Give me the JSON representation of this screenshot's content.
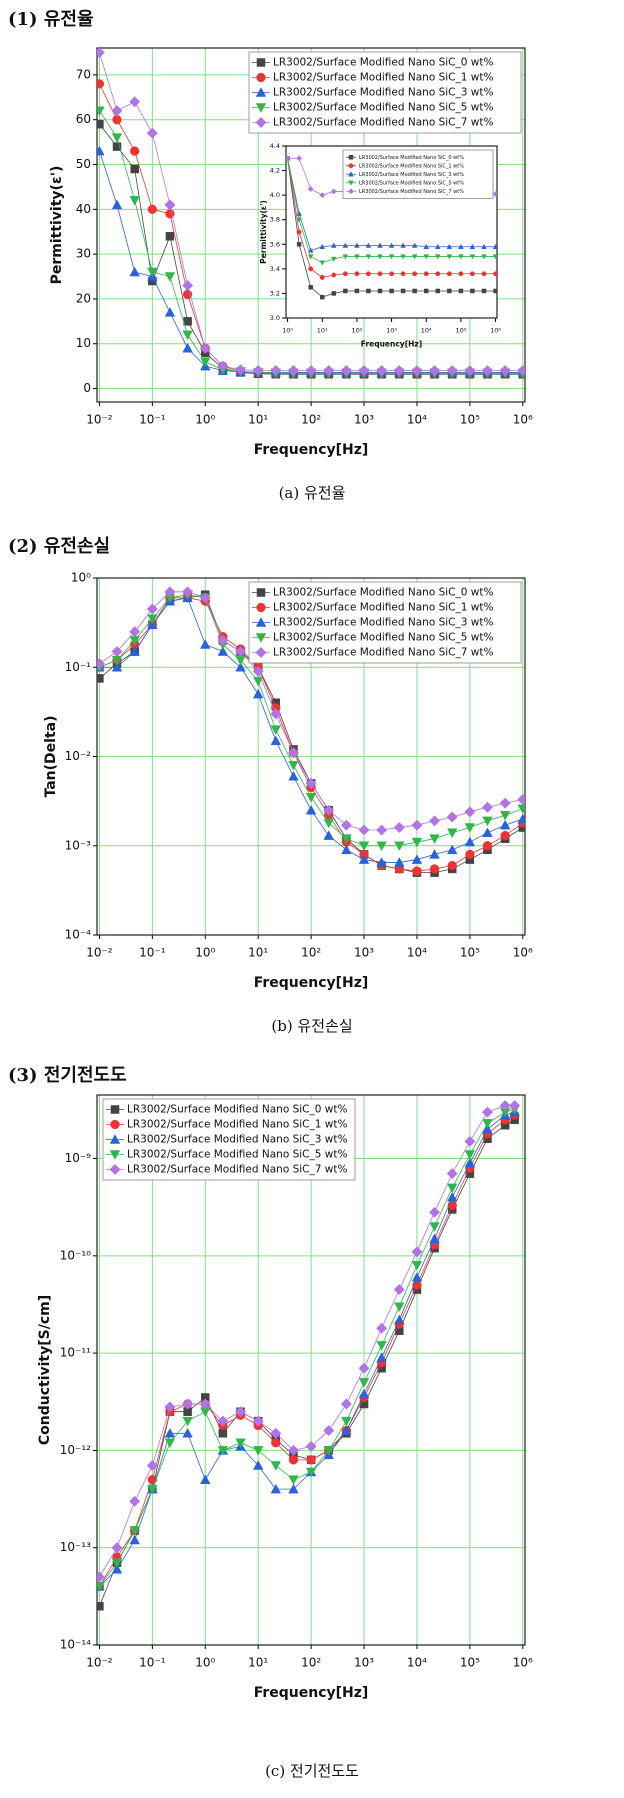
{
  "sections": [
    {
      "heading": "(1) 유전율",
      "caption": "(a) 유전율"
    },
    {
      "heading": "(2) 유전손실",
      "caption": "(b) 유전손실"
    },
    {
      "heading": "(3) 전기전도도",
      "caption": "(c) 전기전도도"
    }
  ],
  "chart_data": [
    {
      "type": "line",
      "xlabel": "Frequency[Hz]",
      "ylabel": "Permittivity(ε')",
      "xlog": true,
      "ylog": false,
      "grid": true,
      "legend": "upper right",
      "xlim": [
        0.009,
        1100000
      ],
      "ylim": [
        -3,
        76
      ],
      "xticks": [
        {
          "value": 0.01,
          "label": "10⁻²"
        },
        {
          "value": 0.1,
          "label": "10⁻¹"
        },
        {
          "value": 1,
          "label": "10⁰"
        },
        {
          "value": 10,
          "label": "10¹"
        },
        {
          "value": 100,
          "label": "10²"
        },
        {
          "value": 1000,
          "label": "10³"
        },
        {
          "value": 10000,
          "label": "10⁴"
        },
        {
          "value": 100000,
          "label": "10⁵"
        },
        {
          "value": 1000000,
          "label": "10⁶"
        }
      ],
      "yticks": [
        0,
        10,
        20,
        30,
        40,
        50,
        60,
        70
      ],
      "x": [
        0.01,
        0.0215,
        0.0464,
        0.1,
        0.215,
        0.464,
        1,
        2.15,
        4.64,
        10,
        21.5,
        46.4,
        100,
        215,
        464,
        1000,
        2150,
        4640,
        10000,
        21500,
        46400,
        100000,
        215000,
        464000,
        1000000
      ],
      "series": [
        {
          "name": "LR3002/Surface Modified Nano SiC_0 wt%",
          "color": "#444444",
          "marker": "square",
          "values": [
            59,
            54,
            49,
            24,
            34,
            15,
            8,
            4.5,
            3.6,
            3.3,
            3.2,
            3.2,
            3.2,
            3.2,
            3.2,
            3.2,
            3.2,
            3.2,
            3.2,
            3.2,
            3.2,
            3.2,
            3.2,
            3.2,
            3.2
          ]
        },
        {
          "name": "LR3002/Surface Modified Nano SiC_1 wt%",
          "color": "#ee3333",
          "marker": "circle",
          "values": [
            68,
            60,
            53,
            40,
            39,
            21,
            9,
            5,
            3.8,
            3.5,
            3.4,
            3.4,
            3.4,
            3.4,
            3.4,
            3.4,
            3.4,
            3.4,
            3.4,
            3.4,
            3.4,
            3.4,
            3.4,
            3.4,
            3.4
          ]
        },
        {
          "name": "LR3002/Surface Modified Nano SiC_3 wt%",
          "color": "#2a62d8",
          "marker": "triangle-up",
          "values": [
            53,
            41,
            26,
            25,
            17,
            9,
            5,
            4,
            3.7,
            3.6,
            3.6,
            3.6,
            3.6,
            3.6,
            3.6,
            3.6,
            3.6,
            3.6,
            3.6,
            3.6,
            3.6,
            3.6,
            3.6,
            3.6,
            3.6
          ]
        },
        {
          "name": "LR3002/Surface Modified Nano SiC_5 wt%",
          "color": "#2fb84a",
          "marker": "triangle-down",
          "values": [
            62,
            56,
            42,
            26,
            25,
            12,
            6,
            4.2,
            3.8,
            3.6,
            3.55,
            3.5,
            3.5,
            3.5,
            3.5,
            3.5,
            3.5,
            3.5,
            3.5,
            3.5,
            3.5,
            3.5,
            3.5,
            3.5,
            3.5
          ]
        },
        {
          "name": "LR3002/Surface Modified Nano SiC_7 wt%",
          "color": "#b273e6",
          "marker": "diamond",
          "values": [
            75,
            62,
            64,
            57,
            41,
            23,
            9,
            5,
            4.2,
            4.05,
            4.03,
            4.03,
            4.03,
            4.03,
            4.03,
            4.03,
            4.03,
            4.02,
            4.02,
            4.02,
            4.02,
            4.01,
            4.01,
            4.01,
            4.01
          ]
        }
      ]
    },
    {
      "type": "line",
      "xlabel": "Frequency[Hz]",
      "ylabel": "Permittivity(ε')",
      "xlog": true,
      "ylog": false,
      "grid": false,
      "legend": "upper right",
      "xlim": [
        0.9,
        1100000
      ],
      "ylim": [
        3.0,
        4.4
      ],
      "xticks": [
        {
          "value": 1,
          "label": "10⁰"
        },
        {
          "value": 10,
          "label": "10¹"
        },
        {
          "value": 100,
          "label": "10²"
        },
        {
          "value": 1000,
          "label": "10³"
        },
        {
          "value": 10000,
          "label": "10⁴"
        },
        {
          "value": 100000,
          "label": "10⁵"
        },
        {
          "value": 1000000,
          "label": "10⁶"
        }
      ],
      "yticks": [
        {
          "value": 3,
          "label": "3.0"
        },
        3.2,
        3.4,
        3.6,
        3.8,
        {
          "value": 4,
          "label": "4.0"
        },
        4.2,
        4.4
      ],
      "x": [
        1,
        2.15,
        4.64,
        10,
        21.5,
        46.4,
        100,
        215,
        464,
        1000,
        2150,
        4640,
        10000,
        21500,
        46400,
        100000,
        215000,
        464000,
        1000000
      ],
      "series": [
        {
          "name": "LR3002/Surface Modified Nano SiC_0 wt%",
          "color": "#444444",
          "marker": "square",
          "values": [
            4.3,
            3.6,
            3.25,
            3.17,
            3.2,
            3.22,
            3.22,
            3.22,
            3.22,
            3.22,
            3.22,
            3.22,
            3.22,
            3.22,
            3.22,
            3.22,
            3.22,
            3.22,
            3.22
          ]
        },
        {
          "name": "LR3002/Surface Modified Nano SiC_1 wt%",
          "color": "#ee3333",
          "marker": "circle",
          "values": [
            4.3,
            3.7,
            3.4,
            3.33,
            3.35,
            3.36,
            3.36,
            3.36,
            3.36,
            3.36,
            3.36,
            3.36,
            3.36,
            3.36,
            3.36,
            3.36,
            3.36,
            3.36,
            3.36
          ]
        },
        {
          "name": "LR3002/Surface Modified Nano SiC_3 wt%",
          "color": "#2a62d8",
          "marker": "triangle-up",
          "values": [
            4.3,
            3.85,
            3.55,
            3.58,
            3.59,
            3.59,
            3.59,
            3.59,
            3.59,
            3.59,
            3.59,
            3.59,
            3.58,
            3.58,
            3.58,
            3.58,
            3.58,
            3.58,
            3.58
          ]
        },
        {
          "name": "LR3002/Surface Modified Nano SiC_5 wt%",
          "color": "#2fb84a",
          "marker": "triangle-down",
          "values": [
            4.3,
            3.8,
            3.5,
            3.45,
            3.48,
            3.5,
            3.5,
            3.5,
            3.5,
            3.5,
            3.5,
            3.5,
            3.5,
            3.5,
            3.5,
            3.5,
            3.5,
            3.5,
            3.5
          ]
        },
        {
          "name": "LR3002/Surface Modified Nano SiC_7 wt%",
          "color": "#b273e6",
          "marker": "diamond",
          "values": [
            4.3,
            4.3,
            4.05,
            4.0,
            4.03,
            4.03,
            4.03,
            4.03,
            4.03,
            4.03,
            4.03,
            4.02,
            4.02,
            4.02,
            4.02,
            4.01,
            4.01,
            4.01,
            4.01
          ]
        }
      ]
    },
    {
      "type": "line",
      "xlabel": "Frequency[Hz]",
      "ylabel": "Tan(Delta)",
      "xlog": true,
      "ylog": true,
      "grid": true,
      "legend": "upper right",
      "xlim": [
        0.009,
        1100000
      ],
      "ylim": [
        0.0001,
        1
      ],
      "xticks": [
        {
          "value": 0.01,
          "label": "10⁻²"
        },
        {
          "value": 0.1,
          "label": "10⁻¹"
        },
        {
          "value": 1,
          "label": "10⁰"
        },
        {
          "value": 10,
          "label": "10¹"
        },
        {
          "value": 100,
          "label": "10²"
        },
        {
          "value": 1000,
          "label": "10³"
        },
        {
          "value": 10000,
          "label": "10⁴"
        },
        {
          "value": 100000,
          "label": "10⁵"
        },
        {
          "value": 1000000,
          "label": "10⁶"
        }
      ],
      "yticks": [
        {
          "value": 0.0001,
          "label": "10⁻⁴"
        },
        {
          "value": 0.001,
          "label": "10⁻³"
        },
        {
          "value": 0.01,
          "label": "10⁻²"
        },
        {
          "value": 0.1,
          "label": "10⁻¹"
        },
        {
          "value": 1,
          "label": "10⁰"
        }
      ],
      "x": [
        0.01,
        0.0215,
        0.0464,
        0.1,
        0.215,
        0.464,
        1,
        2.15,
        4.64,
        10,
        21.5,
        46.4,
        100,
        215,
        464,
        1000,
        2150,
        4640,
        10000,
        21500,
        46400,
        100000,
        215000,
        464000,
        1000000
      ],
      "series": [
        {
          "name": "LR3002/Surface Modified Nano SiC_0 wt%",
          "color": "#444444",
          "marker": "square",
          "values": [
            0.075,
            0.11,
            0.15,
            0.3,
            0.55,
            0.6,
            0.65,
            0.2,
            0.15,
            0.1,
            0.04,
            0.012,
            0.005,
            0.0025,
            0.0012,
            0.0008,
            0.0006,
            0.00055,
            0.0005,
            0.0005,
            0.00055,
            0.0007,
            0.0009,
            0.0012,
            0.0016
          ]
        },
        {
          "name": "LR3002/Surface Modified Nano SiC_1 wt%",
          "color": "#ee3333",
          "marker": "circle",
          "values": [
            0.1,
            0.12,
            0.18,
            0.3,
            0.6,
            0.6,
            0.55,
            0.22,
            0.16,
            0.1,
            0.035,
            0.011,
            0.0045,
            0.0022,
            0.0011,
            0.0008,
            0.0006,
            0.00055,
            0.00052,
            0.00055,
            0.0006,
            0.0008,
            0.001,
            0.0013,
            0.0018
          ]
        },
        {
          "name": "LR3002/Surface Modified Nano SiC_3 wt%",
          "color": "#2a62d8",
          "marker": "triangle-up",
          "values": [
            0.1,
            0.1,
            0.15,
            0.3,
            0.55,
            0.6,
            0.18,
            0.15,
            0.1,
            0.05,
            0.015,
            0.006,
            0.0025,
            0.0013,
            0.0009,
            0.0007,
            0.00065,
            0.00065,
            0.0007,
            0.0008,
            0.0009,
            0.0011,
            0.0014,
            0.0017,
            0.002
          ]
        },
        {
          "name": "LR3002/Surface Modified Nano SiC_5 wt%",
          "color": "#2fb84a",
          "marker": "triangle-down",
          "values": [
            0.1,
            0.12,
            0.2,
            0.35,
            0.6,
            0.65,
            0.6,
            0.18,
            0.12,
            0.07,
            0.02,
            0.008,
            0.0035,
            0.0018,
            0.0012,
            0.001,
            0.001,
            0.001,
            0.0011,
            0.0012,
            0.0014,
            0.0016,
            0.0019,
            0.0022,
            0.0026
          ]
        },
        {
          "name": "LR3002/Surface Modified Nano SiC_7 wt%",
          "color": "#b273e6",
          "marker": "diamond",
          "values": [
            0.11,
            0.15,
            0.25,
            0.45,
            0.7,
            0.7,
            0.6,
            0.2,
            0.15,
            0.09,
            0.03,
            0.011,
            0.005,
            0.0025,
            0.0017,
            0.0015,
            0.0015,
            0.0016,
            0.0017,
            0.0019,
            0.0021,
            0.0024,
            0.0027,
            0.003,
            0.0033
          ]
        }
      ]
    },
    {
      "type": "line",
      "xlabel": "Frequency[Hz]",
      "ylabel": "Conductivity[S/cm]",
      "xlog": true,
      "ylog": true,
      "grid": true,
      "legend": "upper left",
      "xlim": [
        0.009,
        1100000
      ],
      "ylim": [
        1e-14,
        4.5e-09
      ],
      "xticks": [
        {
          "value": 0.01,
          "label": "10⁻²"
        },
        {
          "value": 0.1,
          "label": "10⁻¹"
        },
        {
          "value": 1,
          "label": "10⁰"
        },
        {
          "value": 10,
          "label": "10¹"
        },
        {
          "value": 100,
          "label": "10²"
        },
        {
          "value": 1000,
          "label": "10³"
        },
        {
          "value": 10000,
          "label": "10⁴"
        },
        {
          "value": 100000,
          "label": "10⁵"
        },
        {
          "value": 1000000,
          "label": "10⁶"
        }
      ],
      "yticks": [
        {
          "value": 1e-14,
          "label": "10⁻¹⁴"
        },
        {
          "value": 1e-13,
          "label": "10⁻¹³"
        },
        {
          "value": 1e-12,
          "label": "10⁻¹²"
        },
        {
          "value": 1e-11,
          "label": "10⁻¹¹"
        },
        {
          "value": 1e-10,
          "label": "10⁻¹⁰"
        },
        {
          "value": 1e-09,
          "label": "10⁻⁹"
        }
      ],
      "x": [
        0.01,
        0.0215,
        0.0464,
        0.1,
        0.215,
        0.464,
        1,
        2.15,
        4.64,
        10,
        21.5,
        46.4,
        100,
        215,
        464,
        1000,
        2150,
        4640,
        10000,
        21500,
        46400,
        100000,
        215000,
        464000,
        700000
      ],
      "series": [
        {
          "name": "LR3002/Surface Modified Nano SiC_0 wt%",
          "color": "#444444",
          "marker": "square",
          "values": [
            2.5e-14,
            7e-14,
            1.5e-13,
            4e-13,
            2.5e-12,
            2.5e-12,
            3.5e-12,
            1.5e-12,
            2.5e-12,
            2e-12,
            1.3e-12,
            9e-13,
            8e-13,
            1e-12,
            1.5e-12,
            3e-12,
            7e-12,
            1.7e-11,
            4.5e-11,
            1.2e-10,
            3e-10,
            7e-10,
            1.6e-09,
            2.2e-09,
            2.5e-09
          ]
        },
        {
          "name": "LR3002/Surface Modified Nano SiC_1 wt%",
          "color": "#ee3333",
          "marker": "circle",
          "values": [
            4e-14,
            8e-14,
            1.5e-13,
            5e-13,
            2.5e-12,
            3e-12,
            3e-12,
            1.8e-12,
            2.3e-12,
            1.8e-12,
            1.2e-12,
            8e-13,
            8e-13,
            1e-12,
            1.6e-12,
            3.5e-12,
            8e-12,
            2e-11,
            5e-11,
            1.3e-10,
            3.3e-10,
            8e-10,
            1.8e-09,
            2.5e-09,
            2.8e-09
          ]
        },
        {
          "name": "LR3002/Surface Modified Nano SiC_3 wt%",
          "color": "#2a62d8",
          "marker": "triangle-up",
          "values": [
            4e-14,
            6e-14,
            1.2e-13,
            4e-13,
            1.5e-12,
            1.5e-12,
            5e-13,
            1e-12,
            1.1e-12,
            7e-13,
            4e-13,
            4e-13,
            6e-13,
            9e-13,
            1.6e-12,
            3.8e-12,
            9e-12,
            2.2e-11,
            6e-11,
            1.5e-10,
            4e-10,
            9e-10,
            2e-09,
            2.8e-09,
            3e-09
          ]
        },
        {
          "name": "LR3002/Surface Modified Nano SiC_5 wt%",
          "color": "#2fb84a",
          "marker": "triangle-down",
          "values": [
            4e-14,
            7e-14,
            1.5e-13,
            4e-13,
            1.2e-12,
            2e-12,
            2.5e-12,
            1e-12,
            1.2e-12,
            1e-12,
            7e-13,
            5e-13,
            6e-13,
            1e-12,
            2e-12,
            5e-12,
            1.2e-11,
            3e-11,
            8e-11,
            2e-10,
            5e-10,
            1.1e-09,
            2.3e-09,
            3e-09,
            3.2e-09
          ]
        },
        {
          "name": "LR3002/Surface Modified Nano SiC_7 wt%",
          "color": "#b273e6",
          "marker": "diamond",
          "values": [
            5e-14,
            1e-13,
            3e-13,
            7e-13,
            2.8e-12,
            3e-12,
            3e-12,
            2e-12,
            2.5e-12,
            2e-12,
            1.5e-12,
            1e-12,
            1.1e-12,
            1.6e-12,
            3e-12,
            7e-12,
            1.8e-11,
            4.5e-11,
            1.1e-10,
            2.8e-10,
            7e-10,
            1.5e-09,
            3e-09,
            3.5e-09,
            3.5e-09
          ]
        }
      ]
    }
  ]
}
